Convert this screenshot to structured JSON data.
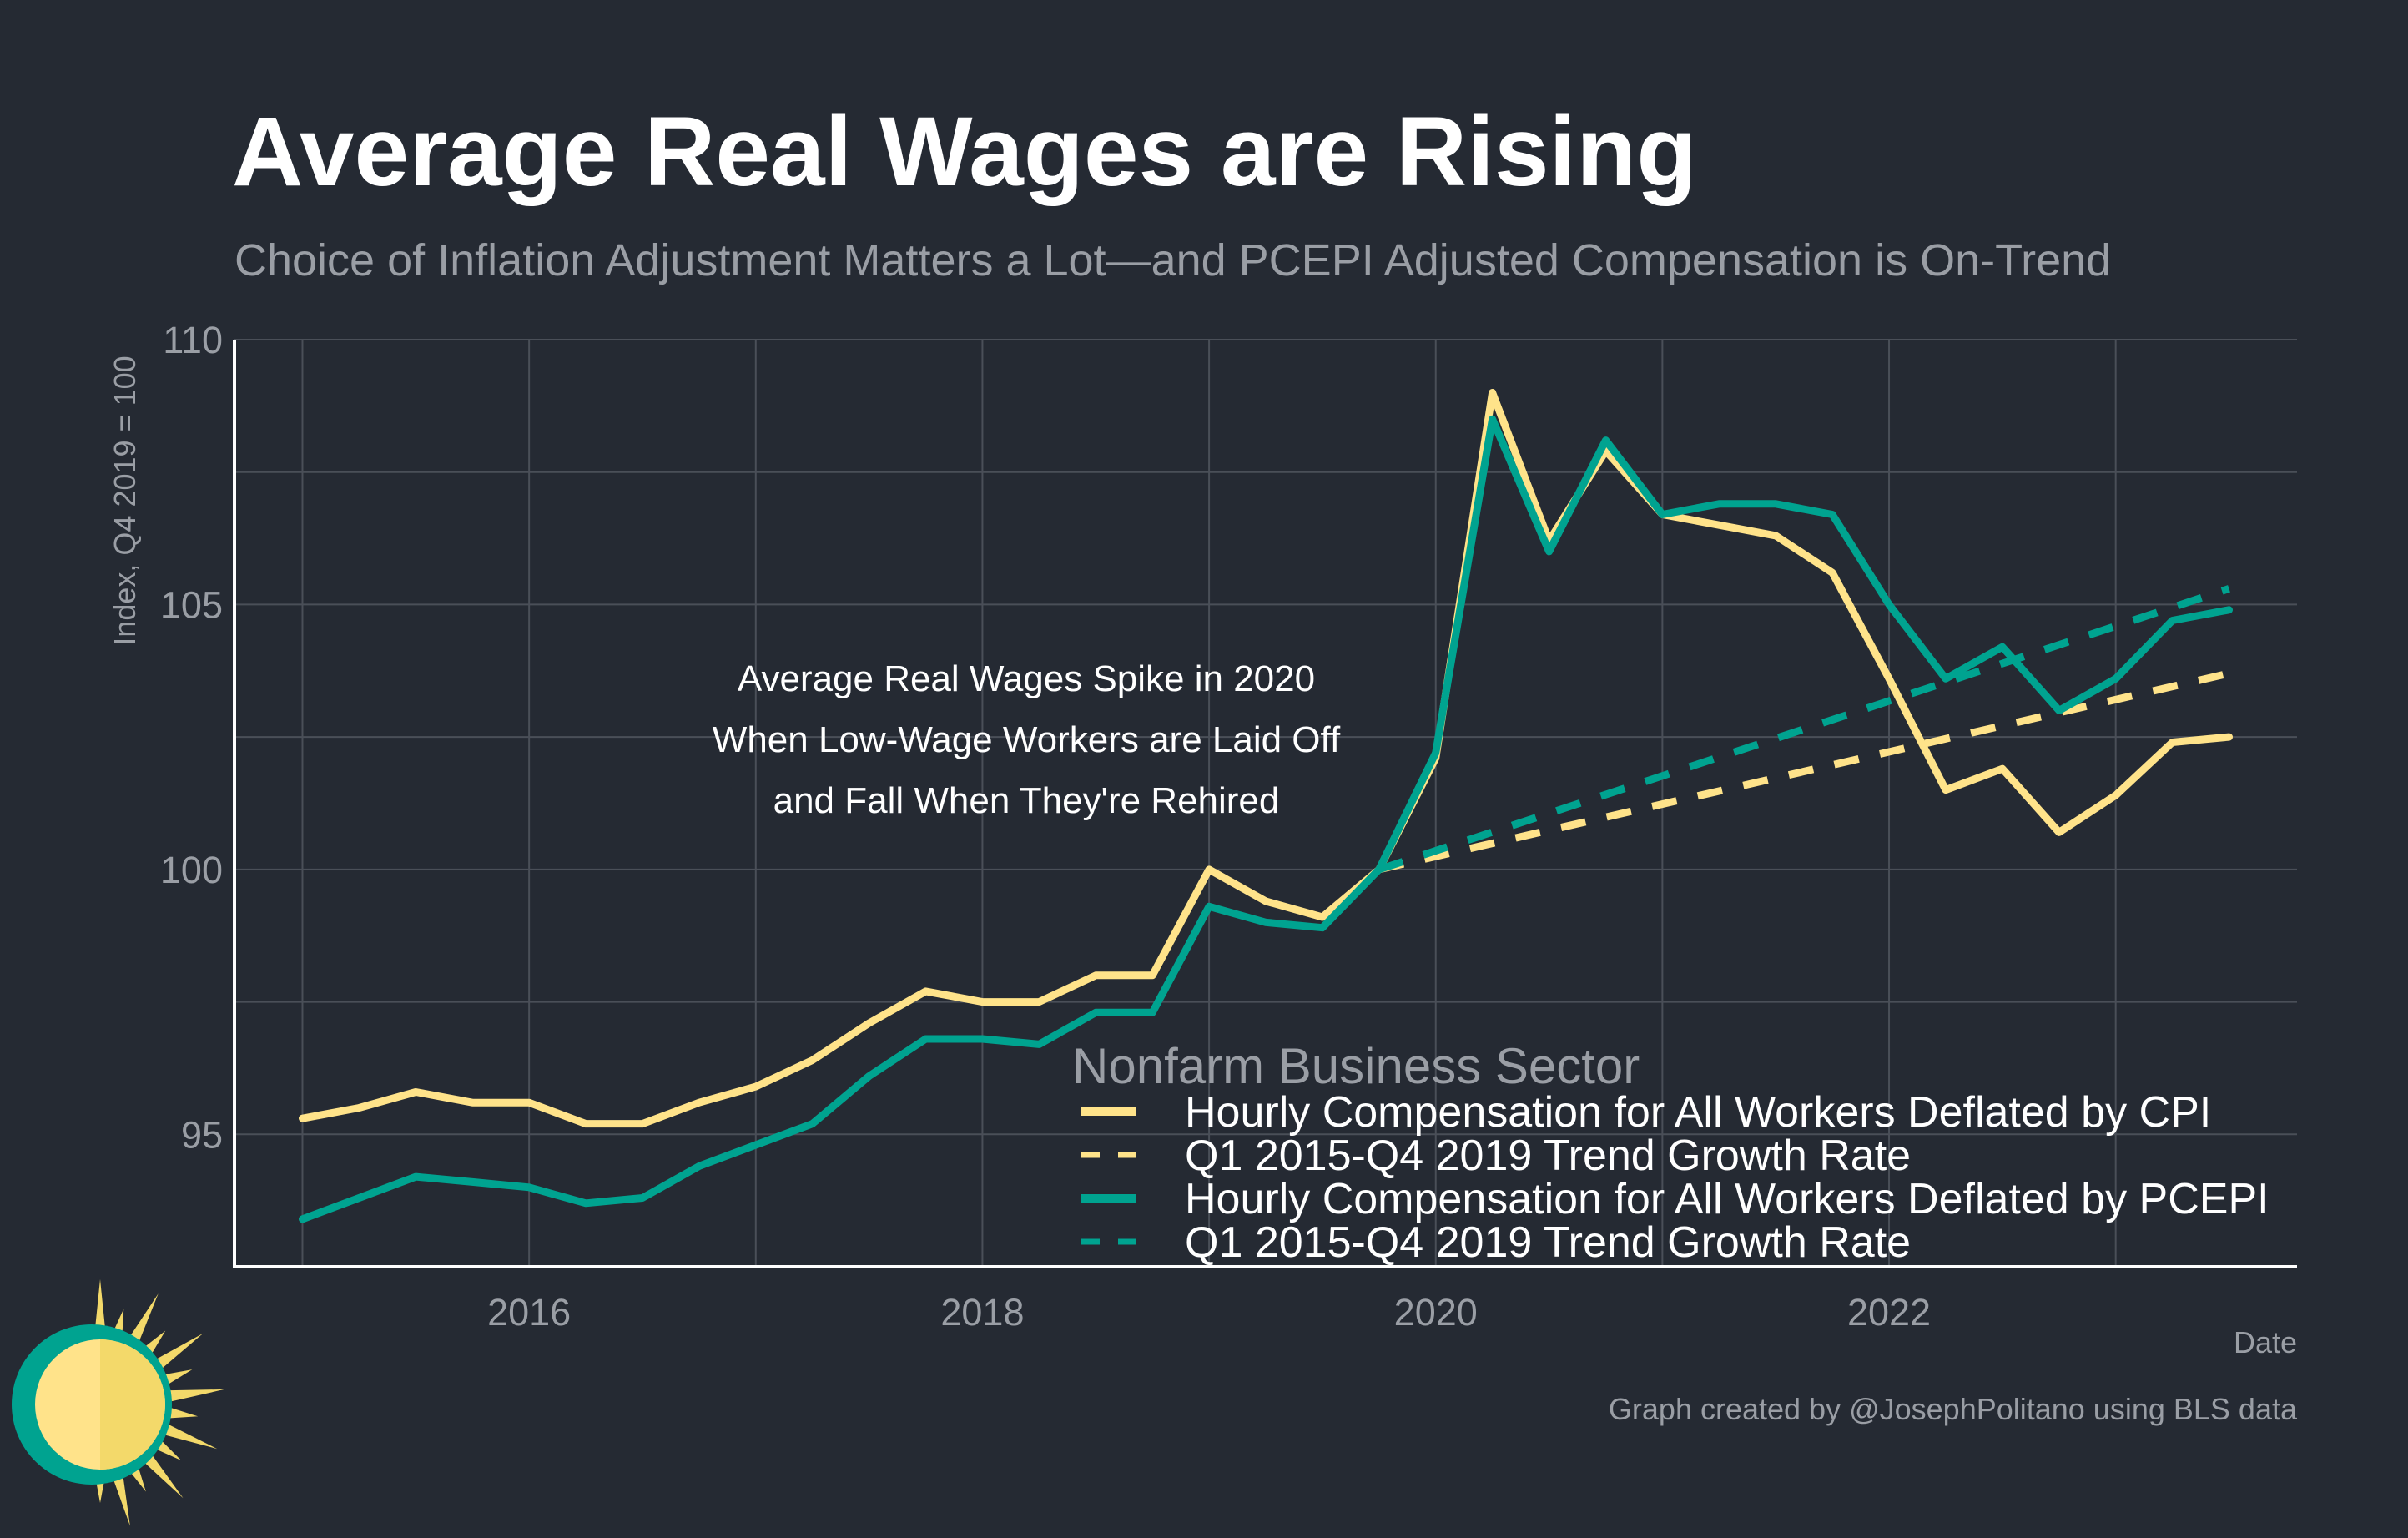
{
  "chart_data": {
    "type": "line",
    "title": "Average Real Wages are Rising",
    "subtitle": "Choice of Inflation Adjustment Matters a Lot—and PCEPI Adjusted Compensation is On-Trend",
    "xlabel": "Date",
    "ylabel": "Index, Q4 2019 = 100",
    "xlim": [
      2014.7,
      2023.8
    ],
    "ylim": [
      92.5,
      110
    ],
    "x_ticks": [
      {
        "value": 2016,
        "label": "2016"
      },
      {
        "value": 2018,
        "label": "2018"
      },
      {
        "value": 2020,
        "label": "2020"
      },
      {
        "value": 2022,
        "label": "2022"
      }
    ],
    "y_ticks": [
      {
        "value": 95,
        "label": "95"
      },
      {
        "value": 100,
        "label": "100"
      },
      {
        "value": 105,
        "label": "105"
      },
      {
        "value": 110,
        "label": "110"
      }
    ],
    "x_grid_minor": [
      2015,
      2017,
      2019,
      2021,
      2023
    ],
    "y_grid_minor": [
      97.5,
      102.5,
      107.5
    ],
    "annotation": {
      "lines": [
        "Average Real Wages Spike in 2020",
        "When Low-Wage Workers are Laid Off",
        "and Fall When They're Rehired"
      ],
      "x": 2017.75,
      "y": 103.6
    },
    "legend": {
      "title": "Nonfarm Business Sector",
      "position": "bottom-right"
    },
    "series": [
      {
        "name": "Hourly Compensation for All Workers Deflated by CPI",
        "color": "#ffe38a",
        "dashed": false,
        "x": [
          2015.0,
          2015.25,
          2015.5,
          2015.75,
          2016.0,
          2016.25,
          2016.5,
          2016.75,
          2017.0,
          2017.25,
          2017.5,
          2017.75,
          2018.0,
          2018.25,
          2018.5,
          2018.75,
          2019.0,
          2019.25,
          2019.5,
          2019.75,
          2020.0,
          2020.25,
          2020.5,
          2020.75,
          2021.0,
          2021.25,
          2021.5,
          2021.75,
          2022.0,
          2022.25,
          2022.5,
          2022.75,
          2023.0,
          2023.25,
          2023.5
        ],
        "values": [
          95.3,
          95.5,
          95.8,
          95.6,
          95.6,
          95.2,
          95.2,
          95.6,
          95.9,
          96.4,
          97.1,
          97.7,
          97.5,
          97.5,
          98.0,
          98.0,
          100.0,
          99.4,
          99.1,
          100.0,
          102.1,
          109.0,
          106.2,
          107.9,
          106.7,
          106.5,
          106.3,
          105.6,
          103.6,
          101.5,
          101.9,
          100.7,
          101.4,
          102.4,
          102.5
        ]
      },
      {
        "name": "Q1 2015-Q4 2019 Trend Growth Rate",
        "color": "#ffe38a",
        "dashed": true,
        "x": [
          2019.75,
          2023.5
        ],
        "values": [
          100.0,
          103.7
        ]
      },
      {
        "name": "Hourly Compensation for All Workers Deflated by PCEPI",
        "color": "#00a390",
        "dashed": false,
        "x": [
          2015.0,
          2015.25,
          2015.5,
          2015.75,
          2016.0,
          2016.25,
          2016.5,
          2016.75,
          2017.0,
          2017.25,
          2017.5,
          2017.75,
          2018.0,
          2018.25,
          2018.5,
          2018.75,
          2019.0,
          2019.25,
          2019.5,
          2019.75,
          2020.0,
          2020.25,
          2020.5,
          2020.75,
          2021.0,
          2021.25,
          2021.5,
          2021.75,
          2022.0,
          2022.25,
          2022.5,
          2022.75,
          2023.0,
          2023.25,
          2023.5
        ],
        "values": [
          93.4,
          93.8,
          94.2,
          94.1,
          94.0,
          93.7,
          93.8,
          94.4,
          94.8,
          95.2,
          96.1,
          96.8,
          96.8,
          96.7,
          97.3,
          97.3,
          99.3,
          99.0,
          98.9,
          100.0,
          102.2,
          108.5,
          106.0,
          108.1,
          106.7,
          106.9,
          106.9,
          106.7,
          105.0,
          103.6,
          104.2,
          103.0,
          103.6,
          104.7,
          104.9
        ]
      },
      {
        "name": "Q1 2015-Q4 2019 Trend Growth Rate",
        "color": "#00a390",
        "dashed": true,
        "x": [
          2019.75,
          2023.5
        ],
        "values": [
          100.0,
          105.3
        ]
      }
    ]
  },
  "caption": "Graph created by @JosephPolitano using BLS data",
  "logo": {
    "name": "sun-logo",
    "colors": {
      "ring": "#00a390",
      "sun": "#ffe38a",
      "rays": "#f3d96a"
    }
  }
}
